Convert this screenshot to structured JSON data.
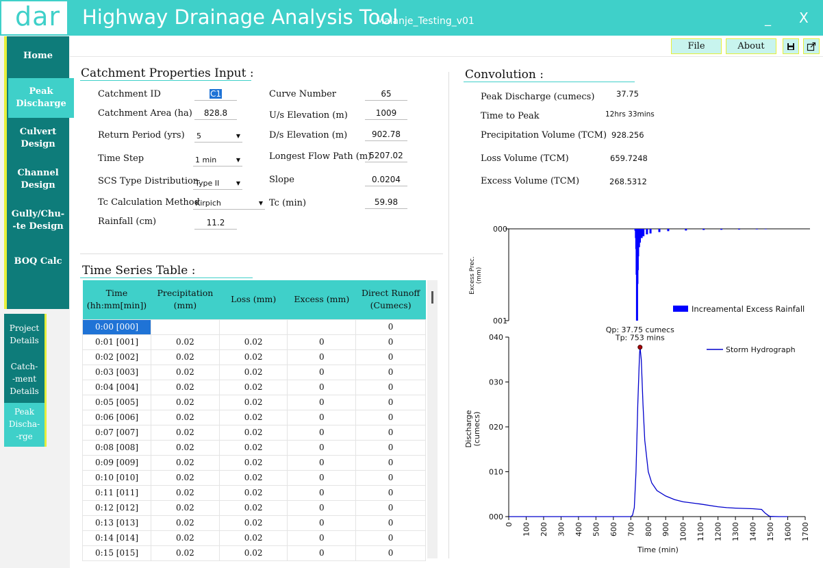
{
  "app": {
    "logo": "dar",
    "title": "Highway Drainage Analysis Tool",
    "project": "Malanje_Testing_v01",
    "minimize": "_",
    "close": "X"
  },
  "sidebar": {
    "items": [
      {
        "label": "Home"
      },
      {
        "label": "Peak\nDischarge"
      },
      {
        "label": "Culvert\nDesign"
      },
      {
        "label": "Channel\nDesign"
      },
      {
        "label": "Gully/Chu-\n-te Design"
      },
      {
        "label": "BOQ Calc"
      }
    ],
    "sub_items": [
      {
        "label": "Project\nDetails"
      },
      {
        "label": "Catch-\n-ment\nDetails"
      },
      {
        "label": "Peak\nDischa-\n-rge"
      }
    ]
  },
  "toolbar": {
    "file": "File",
    "about": "About",
    "save_icon": "save-icon",
    "export_icon": "export-icon"
  },
  "catchment": {
    "title": "Catchment Properties Input :",
    "catchment_id_label": "Catchment ID",
    "catchment_id": "C1",
    "area_label": "Catchment Area (ha)",
    "area": "828.8",
    "return_period_label": "Return Period (yrs)",
    "return_period": "5",
    "time_step_label": "Time Step",
    "time_step": "1 min",
    "scs_label": "SCS Type Distribution",
    "scs": "Type II",
    "tc_method_label": "Tc Calculation Method",
    "tc_method": "Kirpich",
    "rainfall_label": "Rainfall (cm)",
    "rainfall": "11.2",
    "curve_number_label": "Curve Number",
    "curve_number": "65",
    "us_elev_label": "U/s Elevation (m)",
    "us_elev": "1009",
    "ds_elev_label": "D/s Elevation (m)",
    "ds_elev": "902.78",
    "flow_path_label": "Longest Flow Path (m)",
    "flow_path": "5207.02",
    "slope_label": "Slope",
    "slope": "0.0204",
    "tc_label": "Tc (min)",
    "tc": "59.98"
  },
  "convolution": {
    "title": "Convolution :",
    "peak_label": "Peak Discharge (cumecs)",
    "peak": "37.75",
    "ttp_label": "Time to Peak",
    "ttp": "12hrs 33mins",
    "precip_label": "Precipitation Volume (TCM)",
    "precip": "928.256",
    "loss_label": "Loss Volume (TCM)",
    "loss": "659.7248",
    "excess_label": "Excess Volume (TCM)",
    "excess": "268.5312"
  },
  "table": {
    "title": "Time Series Table :",
    "headers": [
      "Time\n(hh:mm[min])",
      "Precipitation\n(mm)",
      "Loss (mm)",
      "Excess (mm)",
      "Direct Runoff\n(Cumecs)"
    ],
    "rows": [
      [
        "0:00 [000]",
        "",
        "",
        "",
        "0"
      ],
      [
        "0:01 [001]",
        "0.02",
        "0.02",
        "0",
        "0"
      ],
      [
        "0:02 [002]",
        "0.02",
        "0.02",
        "0",
        "0"
      ],
      [
        "0:03 [003]",
        "0.02",
        "0.02",
        "0",
        "0"
      ],
      [
        "0:04 [004]",
        "0.02",
        "0.02",
        "0",
        "0"
      ],
      [
        "0:05 [005]",
        "0.02",
        "0.02",
        "0",
        "0"
      ],
      [
        "0:06 [006]",
        "0.02",
        "0.02",
        "0",
        "0"
      ],
      [
        "0:07 [007]",
        "0.02",
        "0.02",
        "0",
        "0"
      ],
      [
        "0:08 [008]",
        "0.02",
        "0.02",
        "0",
        "0"
      ],
      [
        "0:09 [009]",
        "0.02",
        "0.02",
        "0",
        "0"
      ],
      [
        "0:10 [010]",
        "0.02",
        "0.02",
        "0",
        "0"
      ],
      [
        "0:11 [011]",
        "0.02",
        "0.02",
        "0",
        "0"
      ],
      [
        "0:12 [012]",
        "0.02",
        "0.02",
        "0",
        "0"
      ],
      [
        "0:13 [013]",
        "0.02",
        "0.02",
        "0",
        "0"
      ],
      [
        "0:14 [014]",
        "0.02",
        "0.02",
        "0",
        "0"
      ],
      [
        "0:15 [015]",
        "0.02",
        "0.02",
        "0",
        "0"
      ]
    ]
  },
  "chart_data": [
    {
      "type": "bar",
      "ylabel": "Excess Prec.\n(mm)",
      "ytick_labels": [
        "000",
        "001"
      ],
      "legend": "Increamental Excess Rainfall",
      "legend_placement": "bottom-right",
      "color": "#0000ff",
      "x": [
        705,
        710,
        715,
        718,
        720,
        722,
        724,
        726,
        728,
        730,
        735,
        740,
        750,
        760,
        780,
        800,
        850,
        900,
        1000,
        1100,
        1200,
        1300,
        1400,
        1450,
        1460
      ],
      "values": [
        0.0,
        0.003,
        0.02,
        0.1,
        0.22,
        0.5,
        1.0,
        0.6,
        0.45,
        0.3,
        0.2,
        0.15,
        0.1,
        0.08,
        0.06,
        0.05,
        0.035,
        0.025,
        0.018,
        0.012,
        0.01,
        0.008,
        0.006,
        0.005,
        0.0
      ],
      "xlim": [
        0,
        1700
      ],
      "ylim": [
        0,
        1
      ]
    },
    {
      "type": "line",
      "xlabel": "Time (min)",
      "ylabel": "Discharge\n(cumecs)",
      "annotation": "Qp: 37.75 cumecs\nTp: 753 mins",
      "legend": "Storm Hydrograph",
      "legend_placement": "top-right",
      "color": "#0000cc",
      "xlim": [
        0,
        1700
      ],
      "ylim": [
        0,
        40
      ],
      "xticks": [
        0,
        100,
        200,
        300,
        400,
        500,
        600,
        700,
        800,
        900,
        1000,
        1100,
        1200,
        1300,
        1400,
        1500,
        1600,
        1700
      ],
      "ytick_labels": [
        "000",
        "010",
        "020",
        "030",
        "040"
      ],
      "peak": {
        "x": 753,
        "y": 37.75
      },
      "x": [
        0,
        700,
        710,
        720,
        730,
        740,
        750,
        753,
        760,
        770,
        780,
        800,
        820,
        850,
        900,
        950,
        1000,
        1100,
        1200,
        1250,
        1300,
        1400,
        1450,
        1470,
        1490,
        1500,
        1550,
        1600
      ],
      "values": [
        0,
        0,
        0.3,
        2,
        10,
        25,
        36,
        37.75,
        35,
        25,
        17,
        10,
        7.5,
        5.8,
        4.6,
        3.8,
        3.3,
        2.8,
        2.2,
        2.0,
        1.9,
        1.75,
        1.6,
        0.8,
        0.2,
        0.05,
        0,
        0
      ]
    }
  ]
}
